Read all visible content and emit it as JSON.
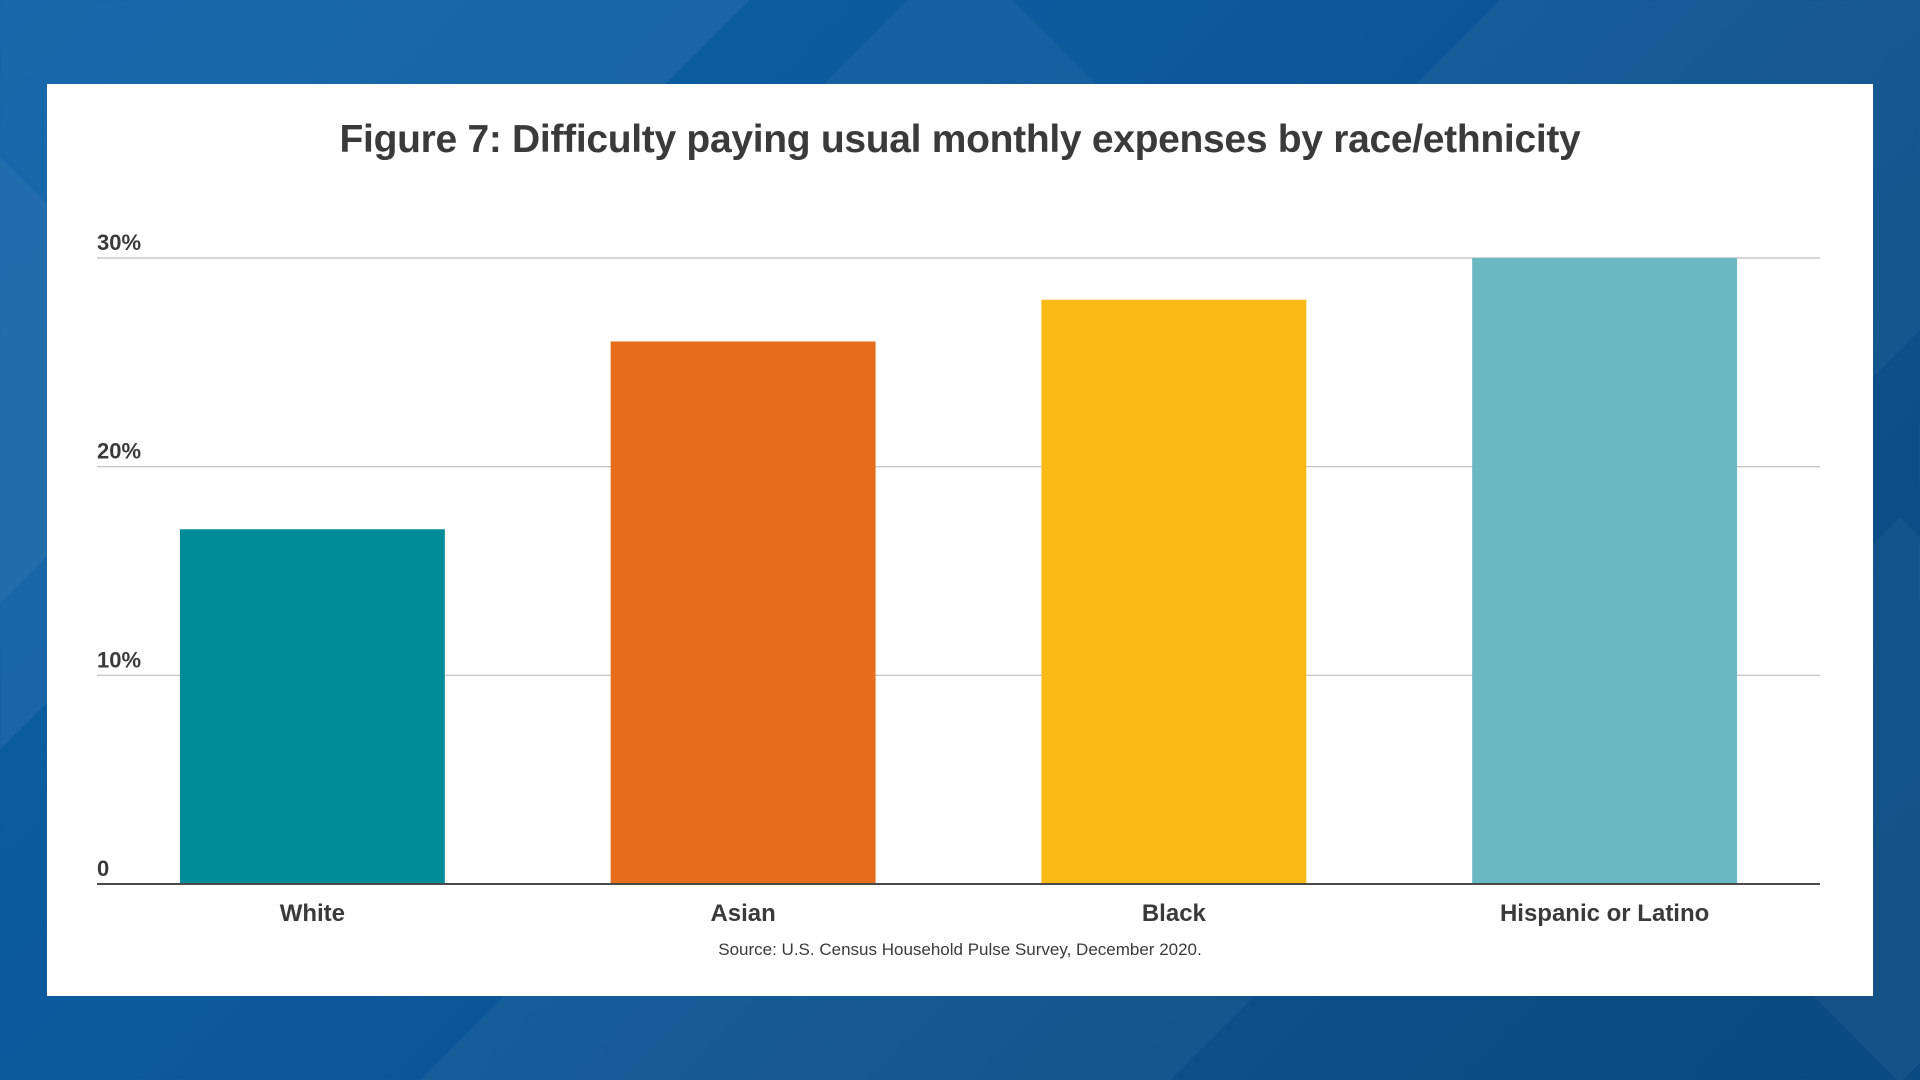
{
  "chart_data": {
    "type": "bar",
    "title": "Figure 7: Difficulty paying usual monthly expenses by race/ethnicity",
    "categories": [
      "White",
      "Asian",
      "Black",
      "Hispanic or Latino"
    ],
    "values": [
      17,
      26,
      28,
      30
    ],
    "colors": [
      "#008b98",
      "#e66d1b",
      "#fbb917",
      "#6ab8c1"
    ],
    "ylim": [
      0,
      30
    ],
    "yticks": [
      {
        "value": 0,
        "label": "0"
      },
      {
        "value": 10,
        "label": "10%"
      },
      {
        "value": 20,
        "label": "20%"
      },
      {
        "value": 30,
        "label": "30%"
      }
    ],
    "xlabel": "",
    "ylabel": "",
    "grid": true,
    "source": "Source: U.S. Census Household Pulse Survey, December 2020."
  }
}
